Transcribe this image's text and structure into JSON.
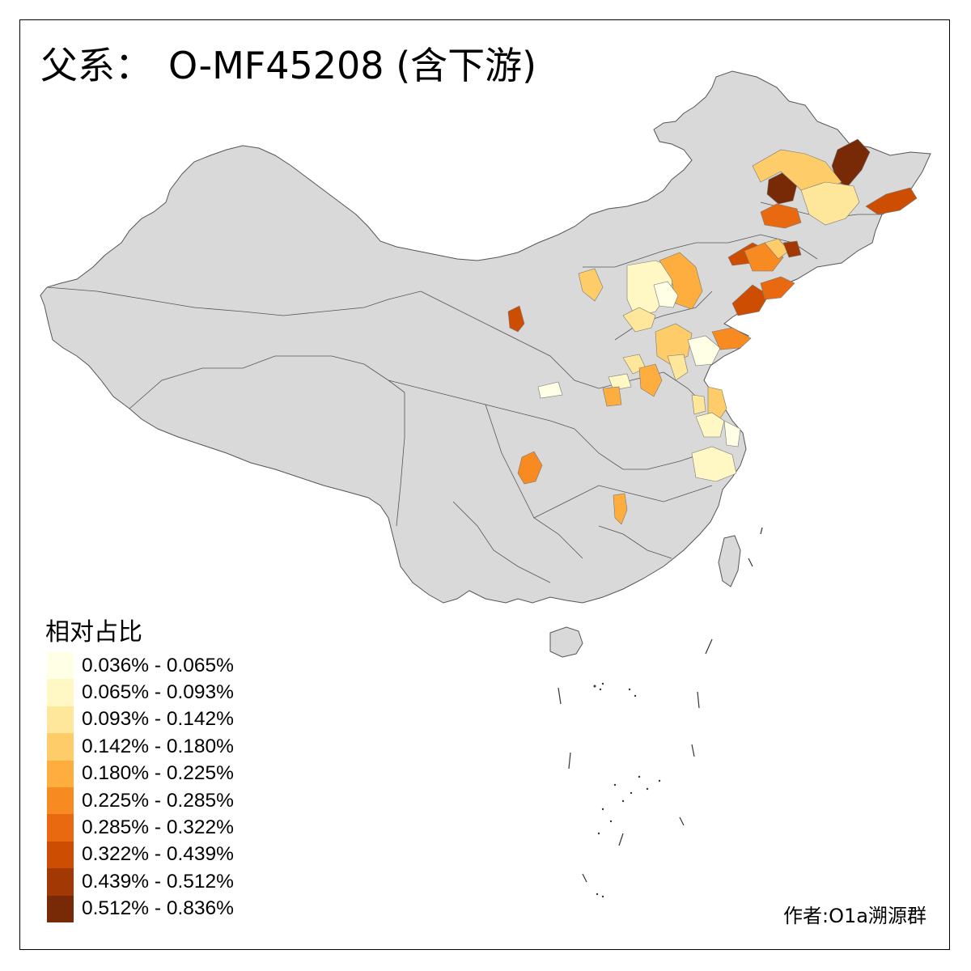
{
  "title": {
    "prefix": "父系：",
    "haplogroup": "O-MF45208 (含下游)"
  },
  "legend": {
    "title": "相对占比",
    "bins": [
      {
        "label": "0.036% - 0.065%",
        "color": "#FFFFE5"
      },
      {
        "label": "0.065% - 0.093%",
        "color": "#FFF7C4"
      },
      {
        "label": "0.093% - 0.142%",
        "color": "#FEE79B"
      },
      {
        "label": "0.142% - 0.180%",
        "color": "#FECD69"
      },
      {
        "label": "0.180% - 0.225%",
        "color": "#FEAD3F"
      },
      {
        "label": "0.225% - 0.285%",
        "color": "#F88A22"
      },
      {
        "label": "0.285% - 0.322%",
        "color": "#E8690F"
      },
      {
        "label": "0.322% - 0.439%",
        "color": "#CD4E03"
      },
      {
        "label": "0.439% - 0.512%",
        "color": "#A23804"
      },
      {
        "label": "0.512% - 0.836%",
        "color": "#772A05"
      }
    ]
  },
  "map": {
    "base_fill": "#D9D9D9",
    "border": "#555555"
  },
  "author": "作者:O1a溯源群"
}
